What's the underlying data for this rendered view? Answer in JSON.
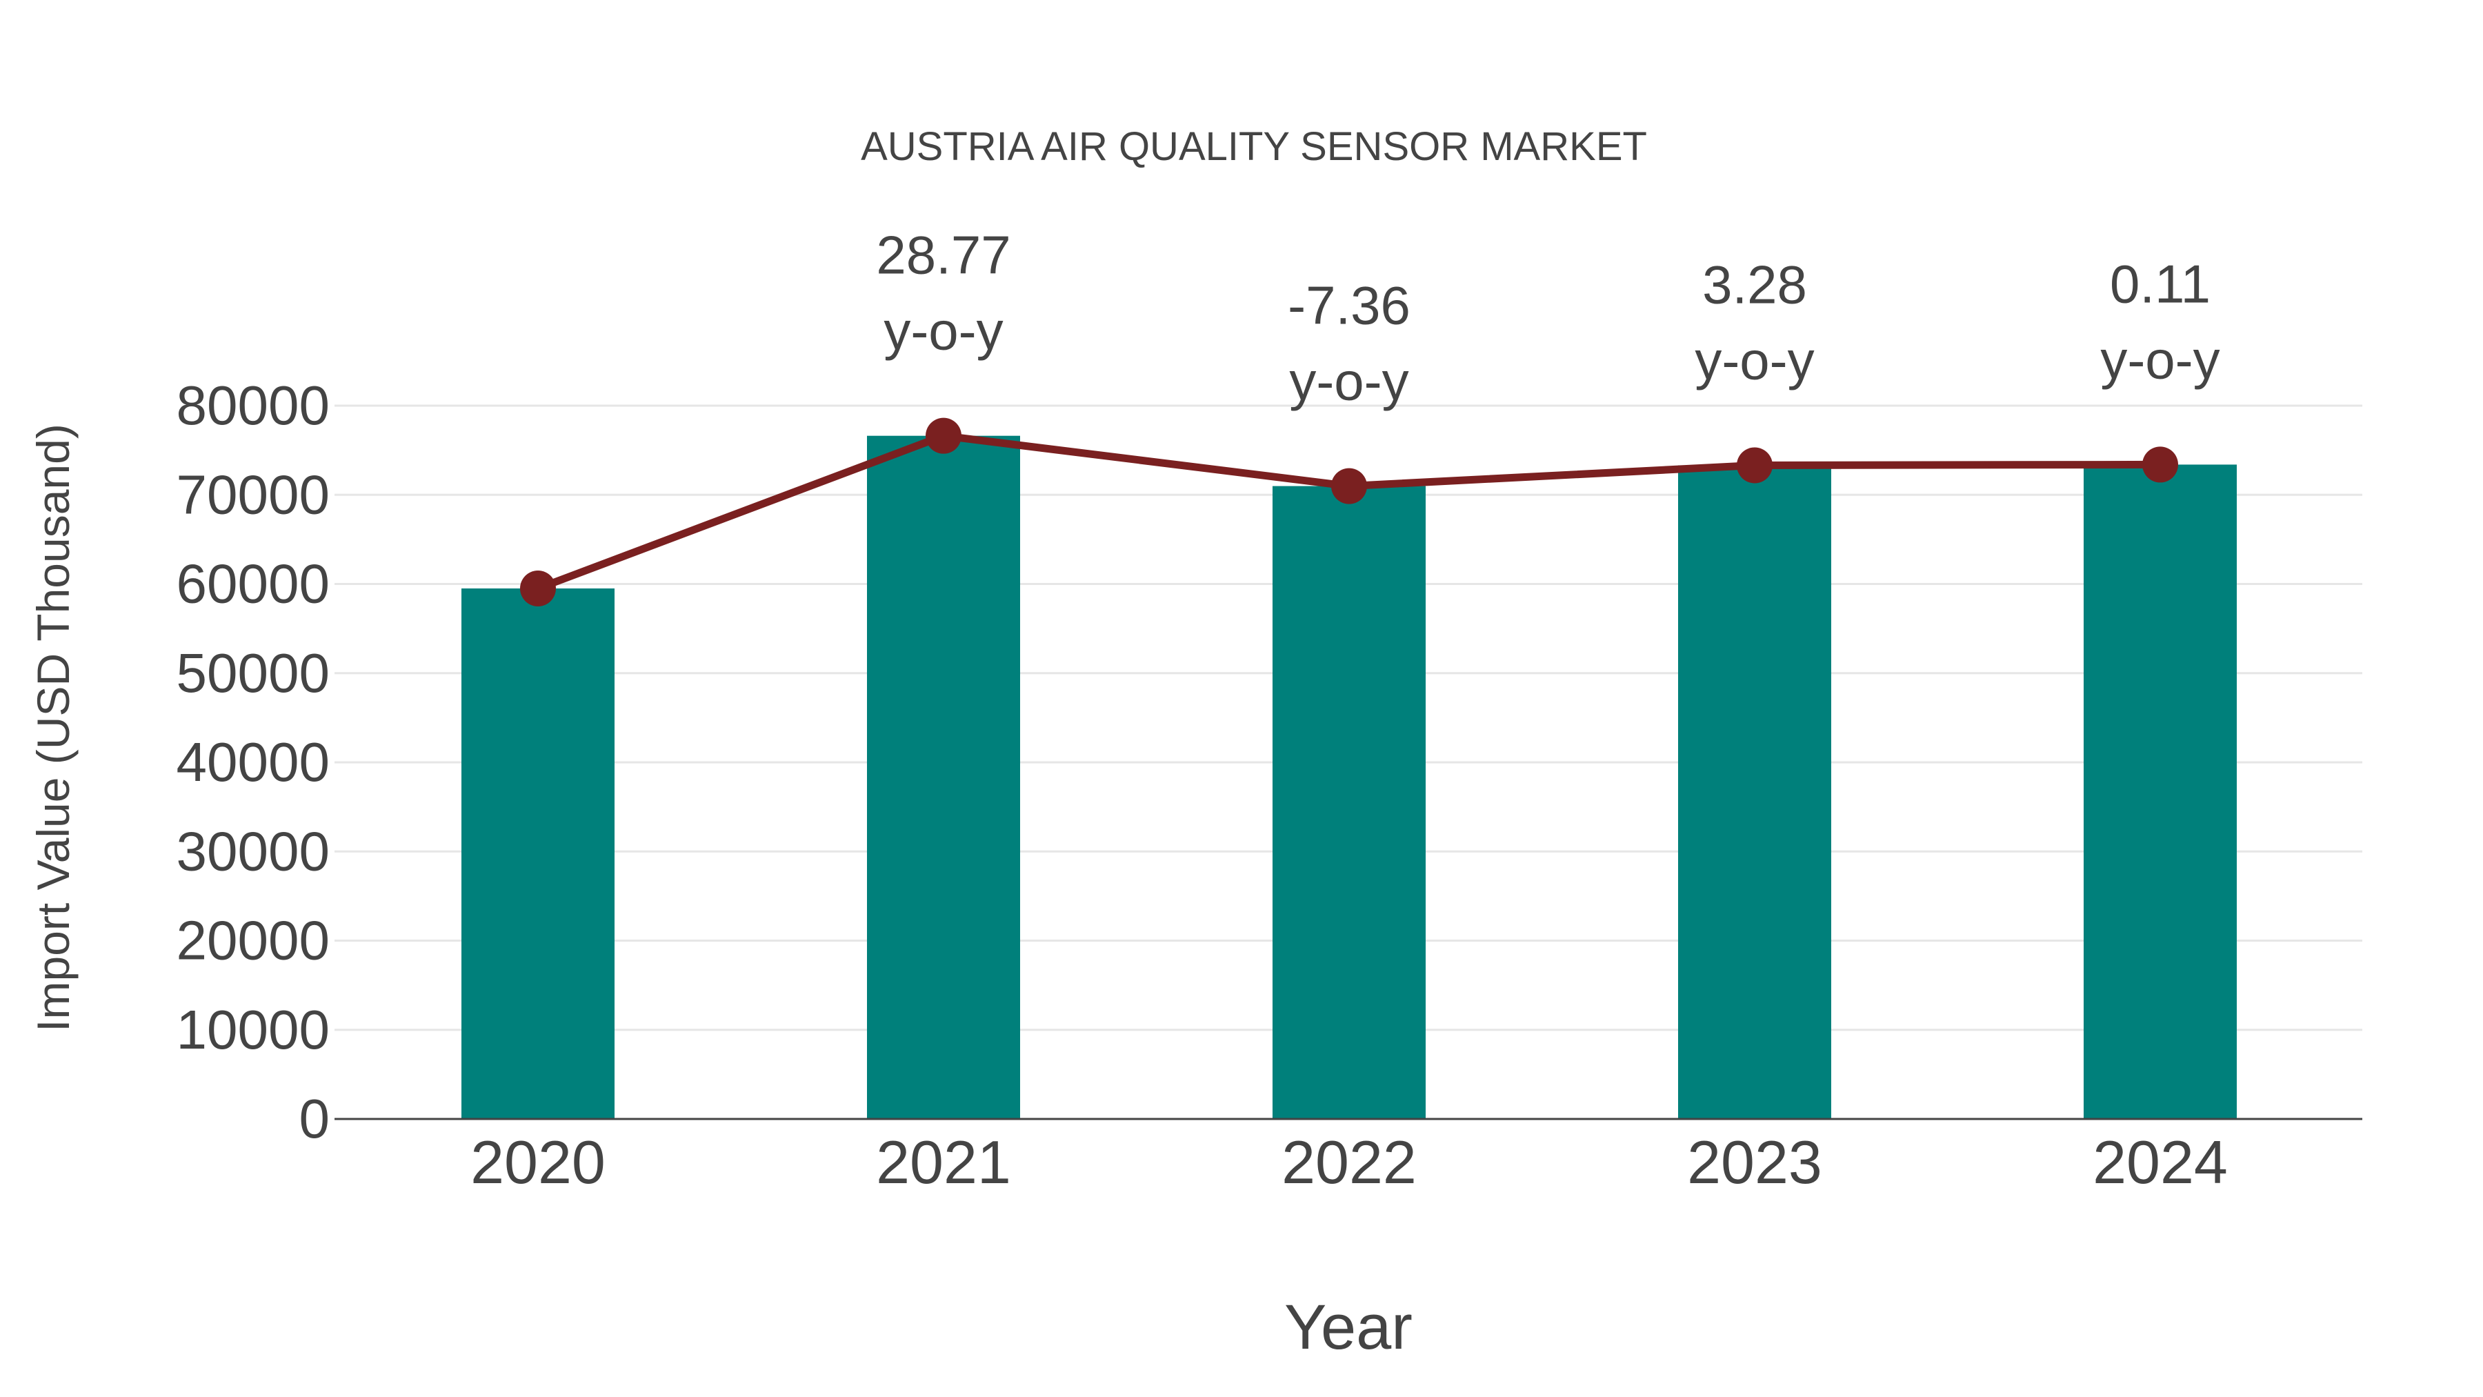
{
  "chart_data": {
    "type": "bar",
    "title": "AUSTRIA AIR QUALITY SENSOR MARKET",
    "xlabel": "Year",
    "ylabel": "Import Value (USD Thousand)",
    "categories": [
      "2020",
      "2021",
      "2022",
      "2023",
      "2024"
    ],
    "series": [
      {
        "name": "Import Value",
        "type": "bar",
        "color": "#00807b",
        "values": [
          59500,
          76620,
          70980,
          73310,
          73390
        ]
      },
      {
        "name": "Import Value (line)",
        "type": "line",
        "color": "#7a2020",
        "values": [
          59500,
          76620,
          70980,
          73310,
          73390
        ]
      }
    ],
    "annotations": [
      {
        "category": "2021",
        "value": "28.77",
        "suffix": "y-o-y"
      },
      {
        "category": "2022",
        "value": "-7.36",
        "suffix": "y-o-y"
      },
      {
        "category": "2023",
        "value": "3.28",
        "suffix": "y-o-y"
      },
      {
        "category": "2024",
        "value": "0.11",
        "suffix": "y-o-y"
      }
    ],
    "yticks": [
      0,
      10000,
      20000,
      30000,
      40000,
      50000,
      60000,
      70000,
      80000
    ],
    "ylim": [
      0,
      80000
    ],
    "grid": true,
    "legend": "none"
  }
}
